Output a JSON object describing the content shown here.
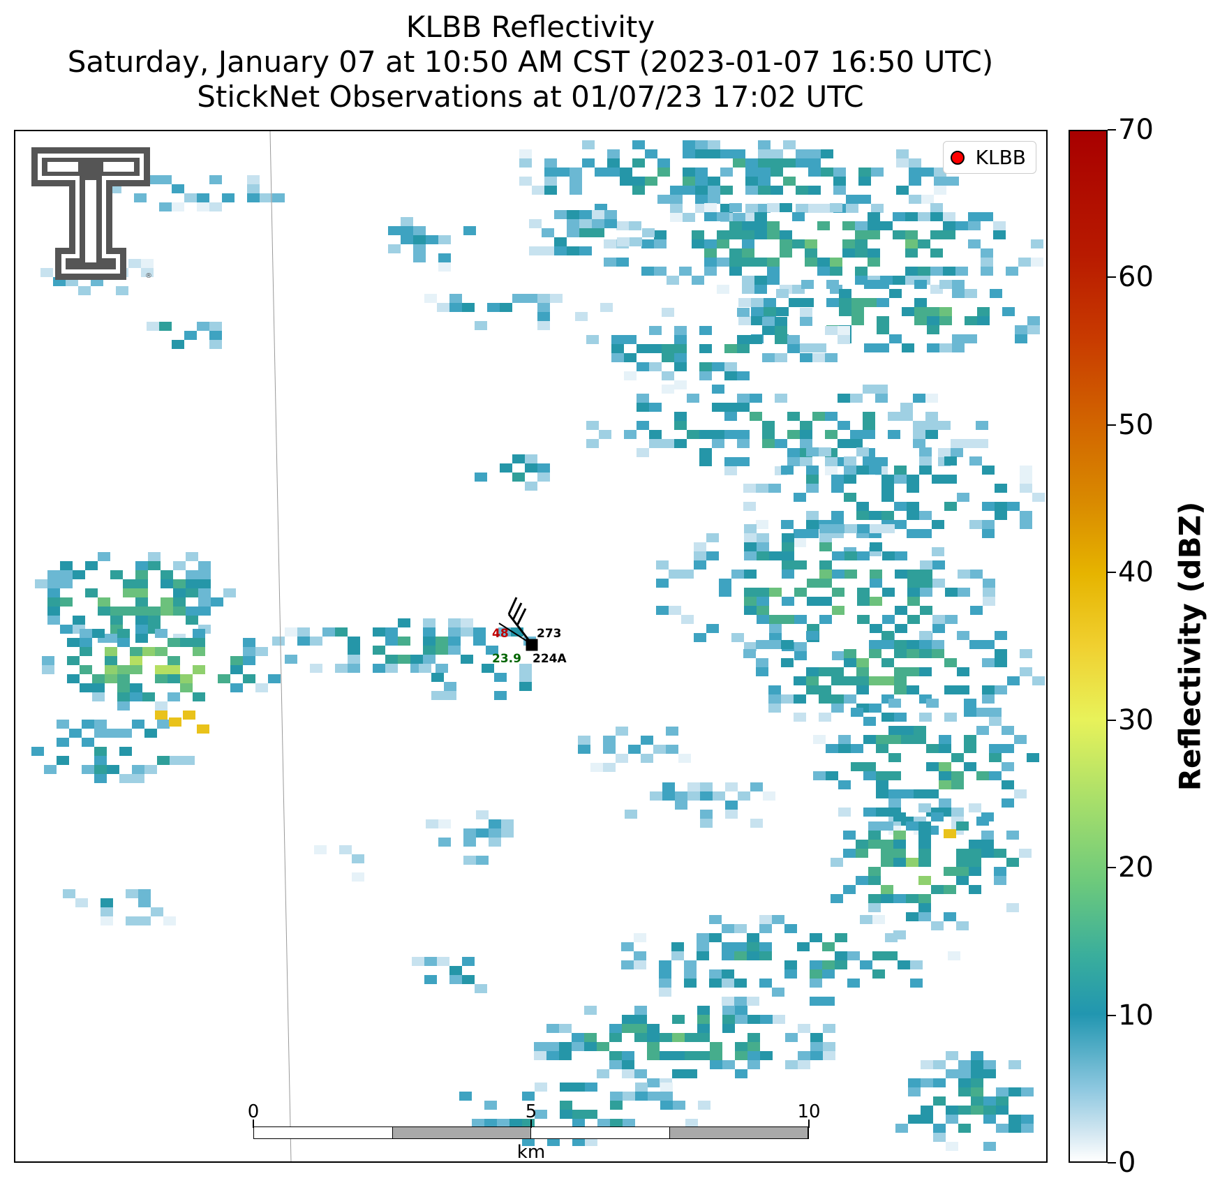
{
  "title": {
    "line1": "KLBB Reflectivity",
    "line2": "Saturday, January 07 at 10:50 AM CST (2023-01-07 16:50 UTC)",
    "line3": "StickNet Observations at 01/07/23 17:02 UTC"
  },
  "legend": {
    "label": "KLBB",
    "marker_color": "#ff0000"
  },
  "colorbar": {
    "label": "Reflectivity (dBZ)",
    "ticks": [
      "70",
      "60",
      "50",
      "40",
      "30",
      "20",
      "10",
      "0"
    ],
    "range": [
      0,
      70
    ],
    "colors": [
      "#ffffff",
      "#8ec8e0",
      "#2196b0",
      "#6cc97c",
      "#e8f25a",
      "#e6b400",
      "#d26600",
      "#a80000"
    ]
  },
  "station": {
    "id": "224A",
    "temperature": "48",
    "dewpoint": "23.9",
    "pressure": "273",
    "temp_color": "#c00000",
    "dew_color": "#006400"
  },
  "scale_bar": {
    "ticks": [
      "0",
      "5",
      "10"
    ],
    "unit": "km"
  },
  "logo": {
    "name": "texas-tech-double-t-logo"
  }
}
